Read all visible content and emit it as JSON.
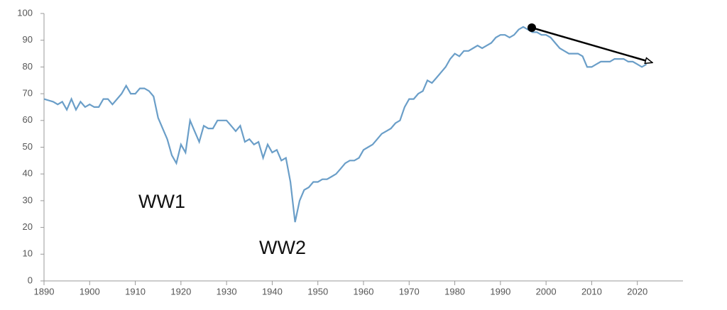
{
  "chart_data": {
    "type": "line",
    "color": "#6a9ec8",
    "x": [
      1890,
      1891,
      1892,
      1893,
      1894,
      1895,
      1896,
      1897,
      1898,
      1899,
      1900,
      1901,
      1902,
      1903,
      1904,
      1905,
      1906,
      1907,
      1908,
      1909,
      1910,
      1911,
      1912,
      1913,
      1914,
      1915,
      1916,
      1917,
      1918,
      1919,
      1920,
      1921,
      1922,
      1923,
      1924,
      1925,
      1926,
      1927,
      1928,
      1929,
      1930,
      1931,
      1932,
      1933,
      1934,
      1935,
      1936,
      1937,
      1938,
      1939,
      1940,
      1941,
      1942,
      1943,
      1944,
      1945,
      1946,
      1947,
      1948,
      1949,
      1950,
      1951,
      1952,
      1953,
      1954,
      1955,
      1956,
      1957,
      1958,
      1959,
      1960,
      1961,
      1962,
      1963,
      1964,
      1965,
      1966,
      1967,
      1968,
      1969,
      1970,
      1971,
      1972,
      1973,
      1974,
      1975,
      1976,
      1977,
      1978,
      1979,
      1980,
      1981,
      1982,
      1983,
      1984,
      1985,
      1986,
      1987,
      1988,
      1989,
      1990,
      1991,
      1992,
      1993,
      1994,
      1995,
      1996,
      1997,
      1998,
      1999,
      2000,
      2001,
      2002,
      2003,
      2004,
      2005,
      2006,
      2007,
      2008,
      2009,
      2010,
      2011,
      2012,
      2013,
      2014,
      2015,
      2016,
      2017,
      2018,
      2019,
      2020,
      2021,
      2022
    ],
    "values": [
      68,
      67.5,
      67,
      66,
      67,
      64,
      68,
      64,
      67,
      65,
      66,
      65,
      65,
      68,
      68,
      66,
      68,
      70,
      73,
      70,
      70,
      72,
      72,
      71,
      69,
      61,
      57,
      53,
      47,
      44,
      51,
      48,
      60,
      56,
      52,
      58,
      57,
      57,
      60,
      60,
      60,
      58,
      56,
      58,
      52,
      53,
      51,
      52,
      46,
      51,
      48,
      49,
      45,
      46,
      37,
      22,
      30,
      34,
      35,
      37,
      37,
      38,
      38,
      39,
      40,
      42,
      44,
      45,
      45,
      46,
      49,
      50,
      51,
      53,
      55,
      56,
      57,
      59,
      60,
      65,
      68,
      68,
      70,
      71,
      75,
      74,
      76,
      78,
      80,
      83,
      85,
      84,
      86,
      86,
      87,
      88,
      87,
      88,
      89,
      91,
      92,
      92,
      91,
      92,
      94,
      95,
      94,
      93,
      93,
      92,
      92,
      91,
      89,
      87,
      86,
      85,
      85,
      85,
      84,
      80,
      80,
      81,
      82,
      82,
      82,
      83,
      83,
      83,
      82,
      82,
      81,
      80,
      81
    ],
    "xlim": [
      1890,
      2030
    ],
    "xticks": [
      1890,
      1900,
      1910,
      1920,
      1930,
      1940,
      1950,
      1960,
      1970,
      1980,
      1990,
      2000,
      2010,
      2020
    ],
    "ylim": [
      0,
      100
    ],
    "yticks": [
      0,
      10,
      20,
      30,
      40,
      50,
      60,
      70,
      80,
      90,
      100
    ],
    "annotations": [
      "WW1",
      "WW2"
    ]
  }
}
